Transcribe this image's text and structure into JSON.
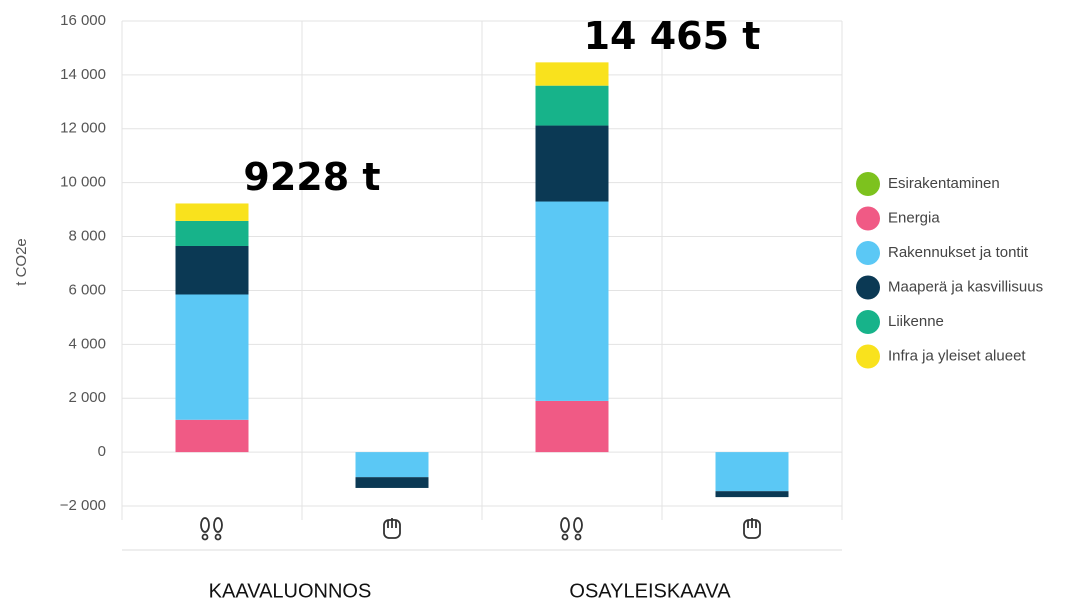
{
  "chart_data": {
    "type": "stacked_bar",
    "ylabel": "t CO2e",
    "categories": [
      null,
      null,
      null,
      null
    ],
    "groups": [
      "KAAVALUONNOS",
      "OSAYLEISKAAVA"
    ],
    "series": [
      {
        "name": "Esirakentaminen",
        "color": "#7dc21e",
        "values": [
          0,
          0,
          0,
          0
        ]
      },
      {
        "name": "Energia",
        "color": "#f05a85",
        "values": [
          1200,
          0,
          1900,
          0
        ]
      },
      {
        "name": "Rakennukset ja tontit",
        "color": "#5bc8f5",
        "values": [
          4650,
          -930,
          7400,
          -1450
        ]
      },
      {
        "name": "Maaperä ja kasvillisuus",
        "color": "#0b3954",
        "values": [
          1800,
          -400,
          2820,
          -220
        ]
      },
      {
        "name": "Liikenne",
        "color": "#17b38a",
        "values": [
          930,
          0,
          1480,
          0
        ]
      },
      {
        "name": "Infra ja yleiset alueet",
        "color": "#f9e21d",
        "values": [
          648,
          0,
          865,
          0
        ]
      }
    ],
    "annotations": [
      "9228 t",
      "14 465 t"
    ],
    "ylim": [
      -2000,
      16000
    ],
    "yticks": [
      {
        "value": -2000,
        "label": "−2 000"
      },
      0,
      {
        "value": 2000,
        "label": "2 000"
      },
      {
        "value": 4000,
        "label": "4 000"
      },
      {
        "value": 6000,
        "label": "6 000"
      },
      {
        "value": 8000,
        "label": "8 000"
      },
      {
        "value": 10000,
        "label": "10 000"
      },
      {
        "value": 12000,
        "label": "12 000"
      },
      {
        "value": 14000,
        "label": "14 000"
      },
      {
        "value": 16000,
        "label": "16 000"
      }
    ],
    "grid": true,
    "legend": "right"
  }
}
